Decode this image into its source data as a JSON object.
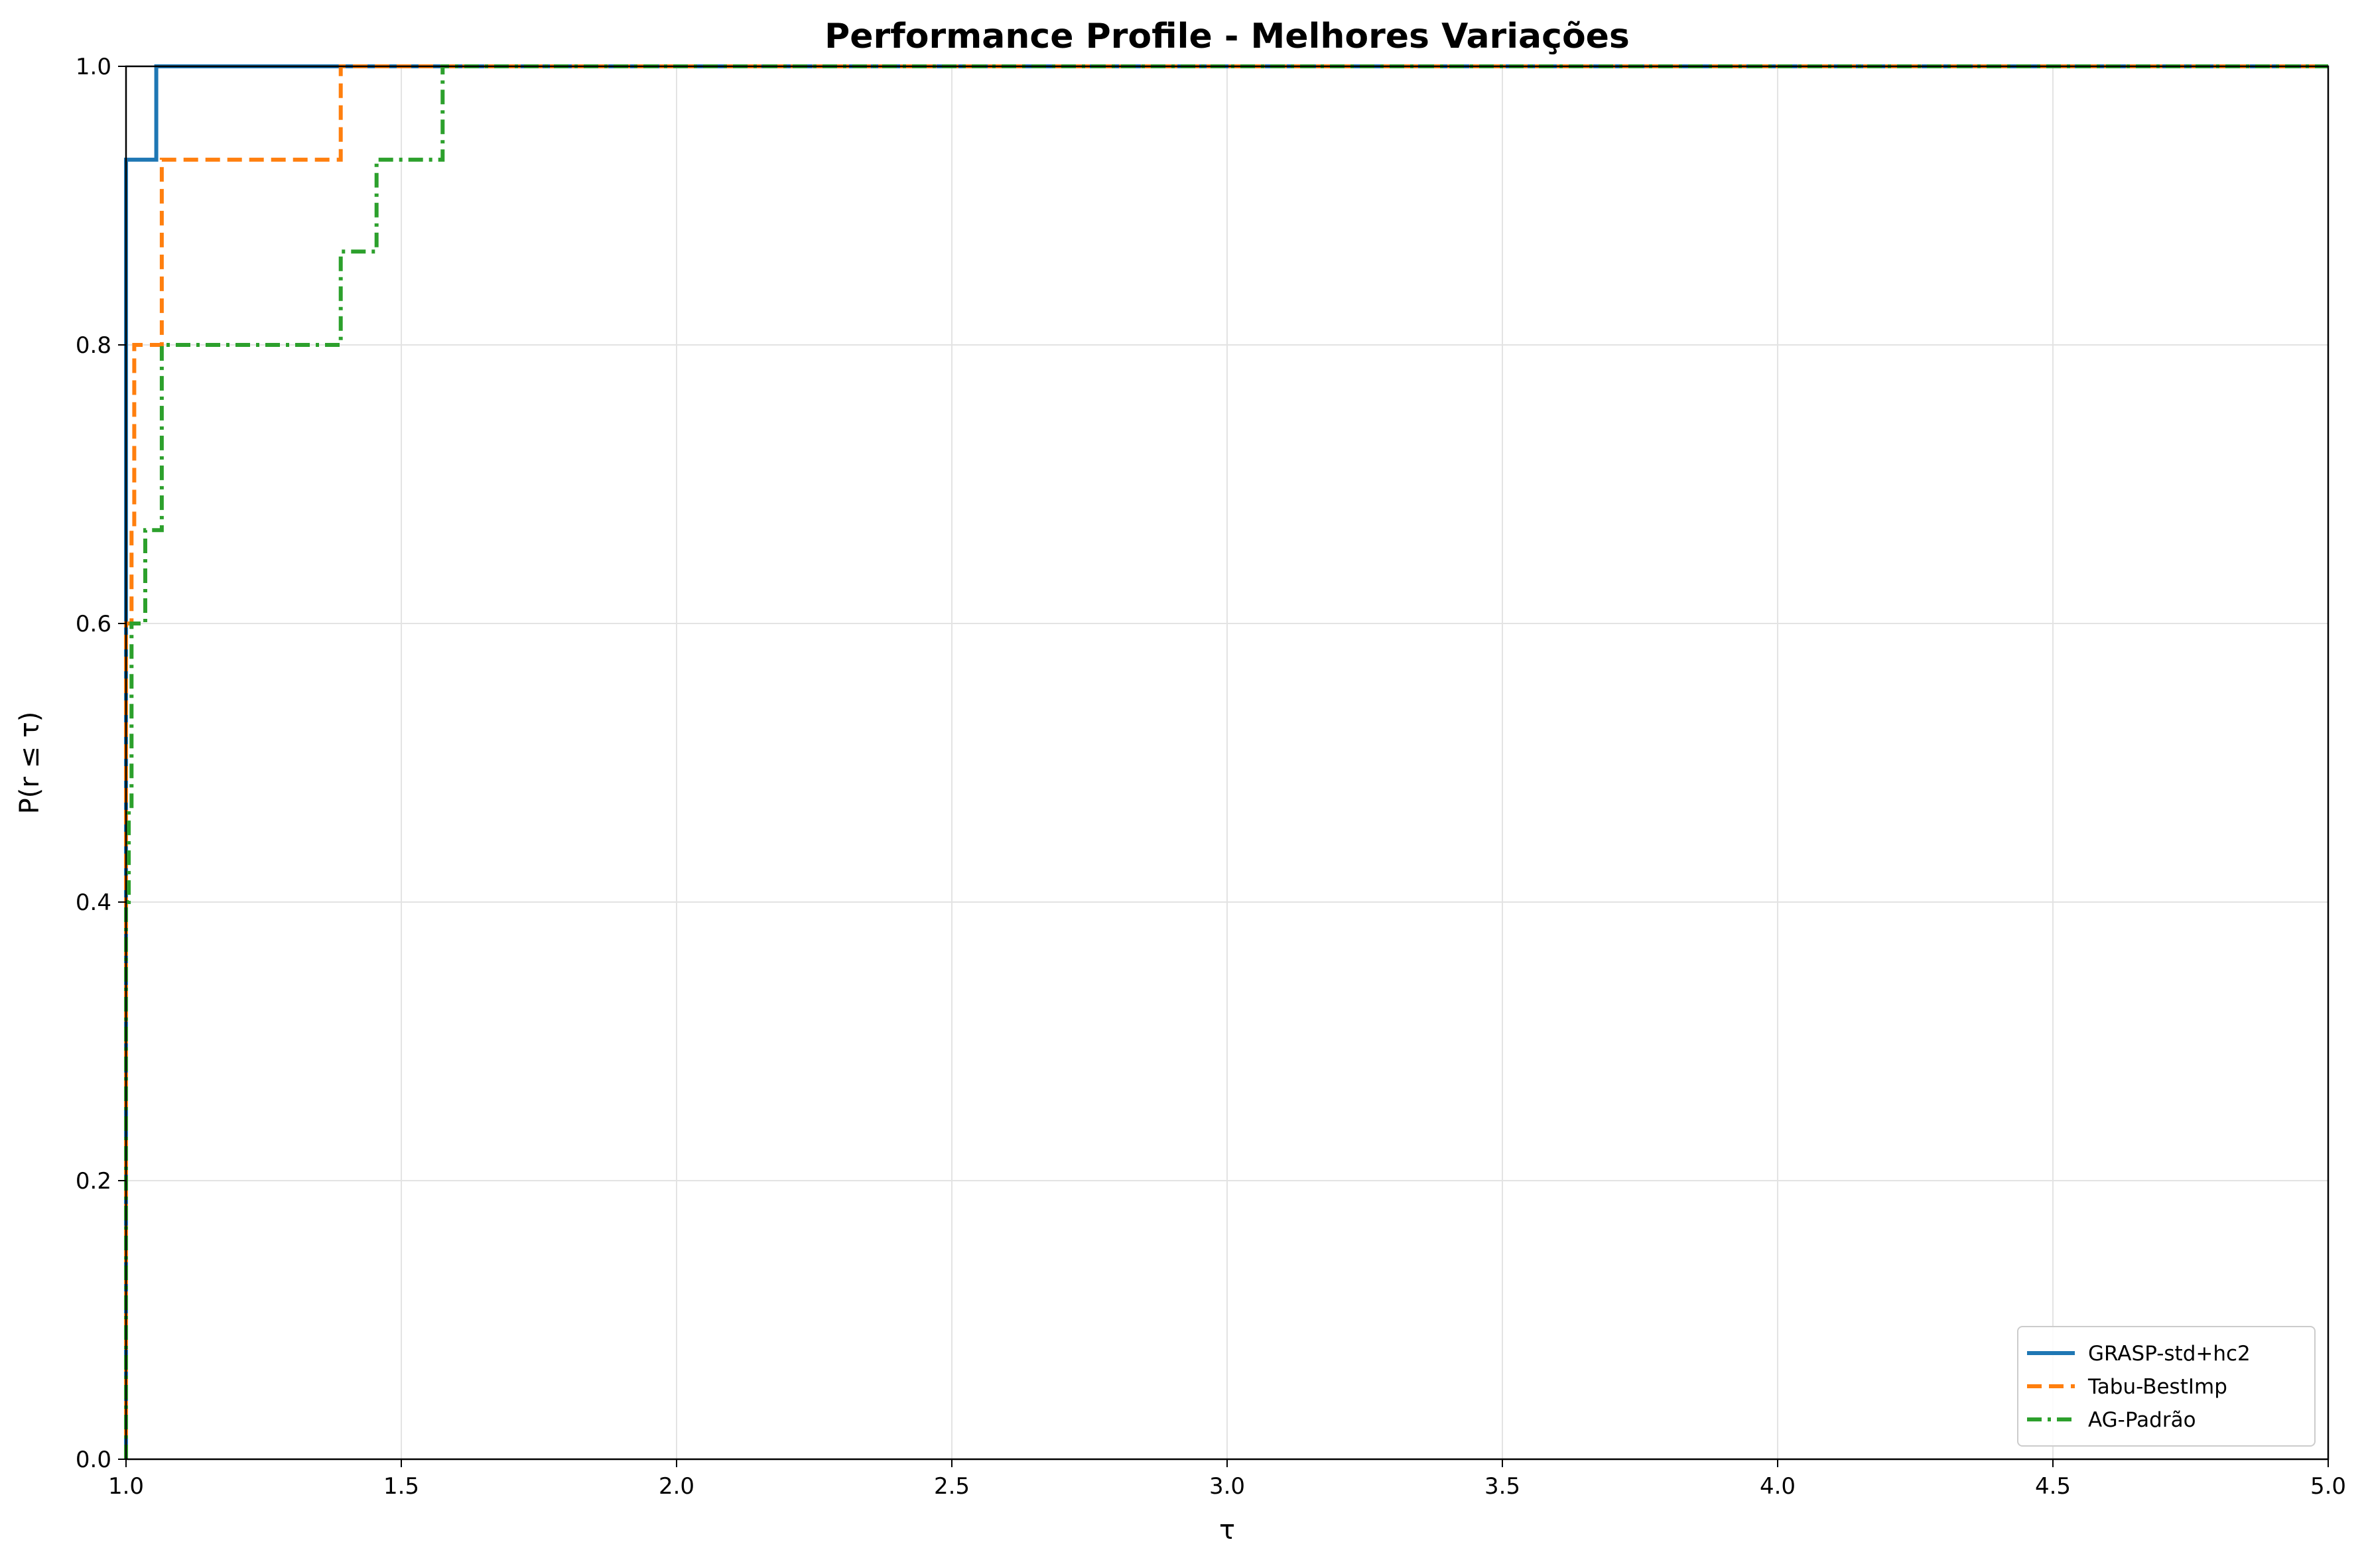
{
  "chart_data": {
    "type": "line",
    "title": "Performance Profile - Melhores Variações",
    "xlabel": "τ",
    "ylabel": "P(r ≤ τ)",
    "xlim": [
      1.0,
      5.0
    ],
    "ylim": [
      0.0,
      1.0
    ],
    "xticks": [
      "1.0",
      "1.5",
      "2.0",
      "2.5",
      "3.0",
      "3.5",
      "4.0",
      "4.5",
      "5.0"
    ],
    "yticks": [
      "0.0",
      "0.2",
      "0.4",
      "0.6",
      "0.8",
      "1.0"
    ],
    "grid": true,
    "legend_position": "lower-right",
    "series": [
      {
        "name": "GRASP-std+hc2",
        "color": "#1f77b4",
        "dash": "solid",
        "x": [
          1.0,
          1.0,
          1.055,
          1.055,
          5.0
        ],
        "y": [
          0.0,
          0.933,
          0.933,
          1.0,
          1.0
        ]
      },
      {
        "name": "Tabu-BestImp",
        "color": "#ff7f0e",
        "dash": "dashed",
        "x": [
          1.0,
          1.0,
          1.01,
          1.01,
          1.015,
          1.015,
          1.065,
          1.065,
          1.39,
          1.39,
          5.0
        ],
        "y": [
          0.0,
          0.6,
          0.6,
          0.667,
          0.667,
          0.8,
          0.8,
          0.933,
          0.933,
          1.0,
          1.0
        ]
      },
      {
        "name": "AG-Padrão",
        "color": "#2ca02c",
        "dash": "dashdot",
        "x": [
          1.0,
          1.0,
          1.005,
          1.005,
          1.01,
          1.01,
          1.035,
          1.035,
          1.065,
          1.065,
          1.39,
          1.39,
          1.455,
          1.455,
          1.575,
          1.575,
          5.0
        ],
        "y": [
          0.0,
          0.4,
          0.4,
          0.467,
          0.467,
          0.6,
          0.6,
          0.667,
          0.667,
          0.8,
          0.8,
          0.867,
          0.867,
          0.933,
          0.933,
          1.0,
          1.0
        ]
      }
    ]
  }
}
